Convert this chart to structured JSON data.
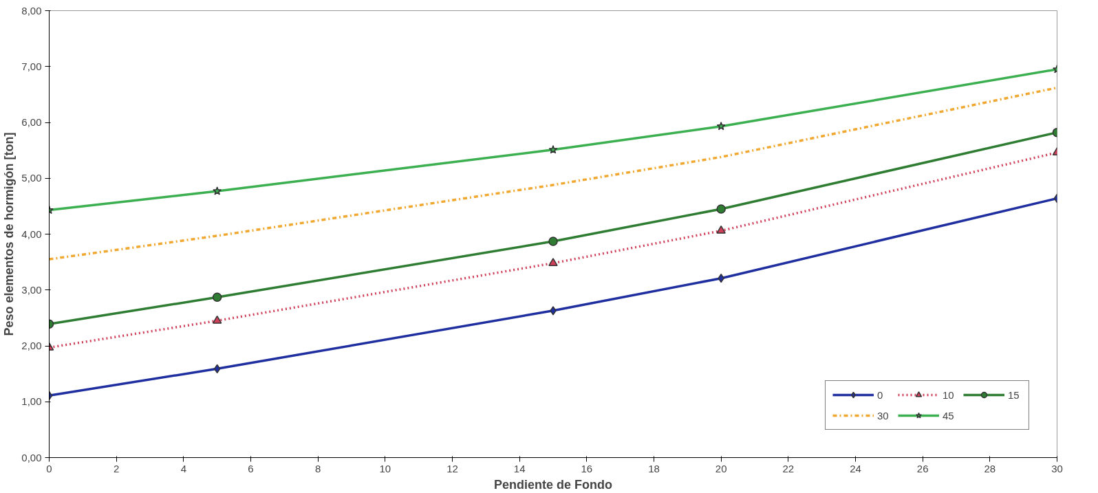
{
  "chart_data": {
    "type": "line",
    "xlabel": "Pendiente de Fondo",
    "ylabel": "Peso elementos de hormigón [ton]",
    "x": [
      0,
      5,
      15,
      20,
      30
    ],
    "series": [
      {
        "name": "0",
        "color": "#1f2f9f",
        "values": [
          1.11,
          1.59,
          2.63,
          3.21,
          4.64
        ],
        "marker": "diamond",
        "line_style": "solid"
      },
      {
        "name": "10",
        "color": "#d0405a",
        "values": [
          1.97,
          2.45,
          3.48,
          4.06,
          5.46
        ],
        "marker": "triangle",
        "line_style": "dotted"
      },
      {
        "name": "15",
        "color": "#2e7d32",
        "values": [
          2.39,
          2.87,
          3.87,
          4.45,
          5.82
        ],
        "marker": "circle",
        "line_style": "solid"
      },
      {
        "name": "30",
        "color": "#f0a830",
        "values": [
          3.55,
          3.97,
          4.88,
          5.38,
          6.62
        ],
        "marker": "none",
        "line_style": "dashed"
      },
      {
        "name": "45",
        "color": "#3cb050",
        "values": [
          4.43,
          4.77,
          5.51,
          5.93,
          6.95
        ],
        "marker": "star",
        "line_style": "solid"
      }
    ],
    "xlim": [
      0,
      30
    ],
    "xticks": [
      0,
      2,
      4,
      6,
      8,
      10,
      12,
      14,
      16,
      18,
      20,
      22,
      24,
      26,
      28,
      30
    ],
    "ylim": [
      0,
      8
    ],
    "yticks": [
      {
        "value": 0,
        "label": "0,00"
      },
      {
        "value": 1,
        "label": "1,00"
      },
      {
        "value": 2,
        "label": "2,00"
      },
      {
        "value": 3,
        "label": "3,00"
      },
      {
        "value": 4,
        "label": "4,00"
      },
      {
        "value": 5,
        "label": "5,00"
      },
      {
        "value": 6,
        "label": "6,00"
      },
      {
        "value": 7,
        "label": "7,00"
      },
      {
        "value": 8,
        "label": "8,00"
      }
    ],
    "grid": false,
    "legend": "bottom right"
  }
}
